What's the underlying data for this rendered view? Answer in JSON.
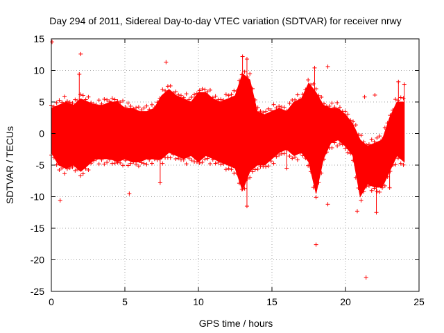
{
  "chart_data": {
    "type": "scatter",
    "title": "Day 294 of 2011, Sidereal Day-to-day VTEC variation (SDTVAR) for receiver nrwy",
    "xlabel": "GPS time / hours",
    "ylabel": "SDTVAR / TECUs",
    "xlim": [
      0,
      25
    ],
    "ylim": [
      -25,
      15
    ],
    "xticks": [
      0,
      5,
      10,
      15,
      20,
      25
    ],
    "yticks": [
      -25,
      -20,
      -15,
      -10,
      -5,
      0,
      5,
      10,
      15
    ],
    "grid": true,
    "marker": "+",
    "color": "#ff0000",
    "series": [
      {
        "name": "SDTVAR",
        "x": [
          0.0,
          0.5,
          1.0,
          1.5,
          2.0,
          2.5,
          3.0,
          3.5,
          4.0,
          4.5,
          5.0,
          5.5,
          6.0,
          6.5,
          7.0,
          7.5,
          8.0,
          8.5,
          9.0,
          9.5,
          10.0,
          10.5,
          11.0,
          11.5,
          12.0,
          12.5,
          13.0,
          13.5,
          14.0,
          14.5,
          15.0,
          15.5,
          16.0,
          16.5,
          17.0,
          17.5,
          18.0,
          18.5,
          19.0,
          19.5,
          20.0,
          20.5,
          21.0,
          21.5,
          22.0,
          22.5,
          23.0,
          23.5,
          24.0
        ],
        "upper": [
          4.0,
          4.5,
          5.0,
          4.5,
          5.5,
          5.0,
          4.5,
          4.5,
          5.0,
          5.0,
          4.0,
          4.0,
          3.5,
          3.5,
          4.0,
          6.0,
          7.0,
          6.0,
          5.5,
          5.0,
          6.5,
          6.5,
          5.5,
          5.0,
          5.5,
          6.0,
          9.5,
          8.5,
          3.5,
          3.0,
          3.5,
          4.0,
          3.5,
          5.0,
          5.5,
          8.0,
          6.5,
          4.5,
          4.0,
          4.0,
          3.0,
          1.5,
          -1.0,
          -2.0,
          -1.5,
          -1.0,
          2.5,
          5.0,
          5.0
        ],
        "lower": [
          -3.0,
          -5.0,
          -5.5,
          -5.0,
          -6.0,
          -5.0,
          -4.0,
          -4.0,
          -4.0,
          -4.5,
          -4.0,
          -4.5,
          -4.5,
          -4.0,
          -4.0,
          -4.0,
          -3.0,
          -3.5,
          -4.0,
          -3.5,
          -4.5,
          -3.5,
          -4.0,
          -4.5,
          -5.0,
          -5.5,
          -9.0,
          -6.0,
          -5.0,
          -5.0,
          -4.0,
          -3.0,
          -2.5,
          -3.5,
          -3.0,
          -4.5,
          -9.5,
          -4.0,
          -1.5,
          -1.0,
          -2.0,
          -3.5,
          -10.0,
          -8.0,
          -8.5,
          -8.5,
          -6.0,
          -3.5,
          -4.5
        ],
        "outliers": [
          [
            0.05,
            14.5
          ],
          [
            2.0,
            12.6
          ],
          [
            1.9,
            9.4
          ],
          [
            0.6,
            -10.6
          ],
          [
            5.3,
            -9.5
          ],
          [
            7.4,
            -7.8
          ],
          [
            7.8,
            11.3
          ],
          [
            13.0,
            12.2
          ],
          [
            13.3,
            11.8
          ],
          [
            13.3,
            -11.5
          ],
          [
            16.0,
            -5.5
          ],
          [
            17.9,
            10.4
          ],
          [
            18.8,
            10.6
          ],
          [
            18.8,
            -11.2
          ],
          [
            18.0,
            -17.6
          ],
          [
            20.8,
            -12.3
          ],
          [
            21.4,
            -22.8
          ],
          [
            21.3,
            5.8
          ],
          [
            22.0,
            6.1
          ],
          [
            22.1,
            -12.5
          ],
          [
            23.0,
            -8.6
          ],
          [
            23.6,
            8.2
          ],
          [
            24.0,
            7.8
          ]
        ]
      }
    ]
  }
}
